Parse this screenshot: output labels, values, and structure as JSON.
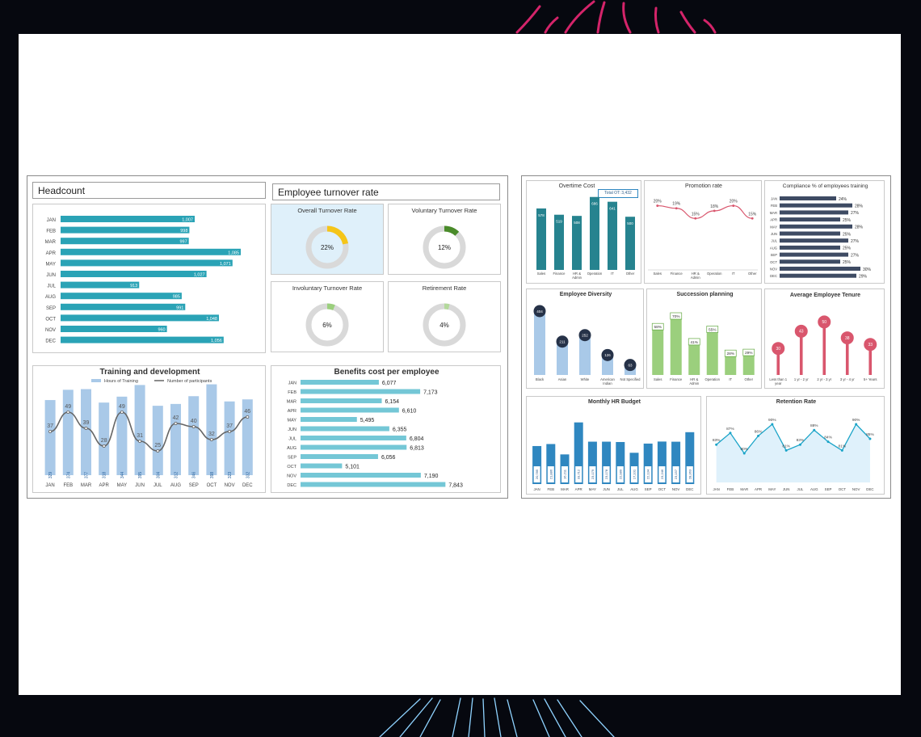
{
  "colors": {
    "teal": "#2aa3b6",
    "turq": "#74c7d6",
    "blue_light": "#a9c9e8",
    "dark_teal": "#26838f",
    "navy": "#3e4b63",
    "green": "#9bcf7d",
    "red": "#d9566d",
    "blue": "#2f87c0",
    "donut_gray": "#d9d9d9",
    "yellow": "#f5c518",
    "dkgreen": "#4a8b2a",
    "ltgreen": "#b4d99c"
  },
  "headcount": {
    "title": "Headcount",
    "chart_data": {
      "type": "bar",
      "orientation": "horizontal",
      "categories": [
        "JAN",
        "FEB",
        "MAR",
        "APR",
        "MAY",
        "JUN",
        "JUL",
        "AUG",
        "SEP",
        "OCT",
        "NOV",
        "DEC"
      ],
      "values": [
        1007,
        998,
        997,
        1085,
        1071,
        1027,
        913,
        985,
        991,
        1048,
        960,
        1056
      ],
      "labels": [
        "1,007",
        "998",
        "997",
        "1,085",
        "1,071",
        "1,027",
        "913",
        "985",
        "991",
        "1,048",
        "960",
        "1,056"
      ]
    }
  },
  "turnover": {
    "title": "Employee turnover rate",
    "tiles": [
      {
        "title": "Overall Turnover Rate",
        "value": 22,
        "label": "22%",
        "color": "yellow"
      },
      {
        "title": "Voluntary Turnover Rate",
        "value": 12,
        "label": "12%",
        "color": "dkgreen"
      },
      {
        "title": "Involuntary Turnover Rate",
        "value": 6,
        "label": "6%",
        "color": "green"
      },
      {
        "title": "Retirement Rate",
        "value": 4,
        "label": "4%",
        "color": "ltgreen"
      }
    ]
  },
  "training": {
    "title": "Training and development",
    "chart_data": {
      "type": "bar",
      "categories": [
        "JAN",
        "FEB",
        "MAR",
        "APR",
        "MAY",
        "JUN",
        "JUL",
        "AUG",
        "SEP",
        "OCT",
        "NOV",
        "DEC"
      ],
      "legend": [
        "Hours of Training",
        "Number of participants"
      ],
      "series": [
        {
          "name": "Hours of Training",
          "values": [
            329,
            374,
            377,
            318,
            344,
            395,
            304,
            312,
            346,
            398,
            323,
            332
          ]
        },
        {
          "name": "Number of participants",
          "values": [
            37,
            49,
            39,
            28,
            49,
            31,
            25,
            42,
            40,
            32,
            37,
            46
          ]
        }
      ],
      "ylim": [
        0,
        420
      ]
    }
  },
  "benefits": {
    "title": "Benefits cost per employee",
    "chart_data": {
      "type": "bar",
      "orientation": "horizontal",
      "categories": [
        "JAN",
        "FEB",
        "MAR",
        "APR",
        "MAY",
        "JUN",
        "JUL",
        "AUG",
        "SEP",
        "OCT",
        "NOV",
        "DEC"
      ],
      "values": [
        6077,
        7173,
        6154,
        6610,
        5495,
        6355,
        6804,
        6813,
        6056,
        5101,
        7190,
        7843
      ],
      "labels": [
        "6,077",
        "7,173",
        "6,154",
        "6,610",
        "5,495",
        "6,355",
        "6,804",
        "6,813",
        "6,056",
        "5,101",
        "7,190",
        "7,843"
      ]
    }
  },
  "overtime": {
    "title": "Overtime Cost",
    "total_label": "Total OT: 3,432",
    "chart_data": {
      "type": "bar",
      "categories": [
        "Sales",
        "Finance",
        "HR & Admin",
        "Operation",
        "IT",
        "Other"
      ],
      "values": [
        578,
        519,
        508,
        686,
        641,
        500
      ],
      "ylim": [
        0,
        760
      ]
    }
  },
  "promotion": {
    "title": "Promotion rate",
    "chart_data": {
      "type": "line",
      "categories": [
        "Sales",
        "Finance",
        "HR & Admin",
        "Operation",
        "IT",
        "Other"
      ],
      "values": [
        20,
        19,
        15,
        18,
        20,
        15
      ],
      "labels": [
        "20%",
        "19%",
        "15%",
        "18%",
        "20%",
        "15%"
      ],
      "ylim": [
        10,
        24
      ]
    }
  },
  "compliance": {
    "title": "Compliance % of employees training",
    "chart_data": {
      "type": "bar",
      "orientation": "horizontal",
      "categories": [
        "JAN",
        "FEB",
        "MAR",
        "APR",
        "MAY",
        "JUN",
        "JUL",
        "AUG",
        "SEP",
        "OCT",
        "NOV",
        "DEC"
      ],
      "values": [
        24,
        28,
        27,
        25,
        28,
        25,
        27,
        25,
        27,
        25,
        30,
        29
      ],
      "labels": [
        "24%",
        "28%",
        "27%",
        "25%",
        "28%",
        "25%",
        "27%",
        "25%",
        "27%",
        "25%",
        "30%",
        "29%"
      ]
    }
  },
  "diversity": {
    "title": "Employee Diversity",
    "chart_data": {
      "type": "bar",
      "categories": [
        "Black",
        "Asian",
        "White",
        "American Indian",
        "Not Specified"
      ],
      "values": [
        404,
        211,
        252,
        126,
        63
      ],
      "ylim": [
        0,
        460
      ]
    }
  },
  "succession": {
    "title": "Succession planning",
    "chart_data": {
      "type": "bar",
      "categories": [
        "Sales",
        "Finance",
        "HR & Admin",
        "Operation",
        "IT",
        "Other"
      ],
      "values": [
        58,
        70,
        41,
        55,
        28,
        29
      ],
      "labels": [
        "58%",
        "70%",
        "41%",
        "55%",
        "28%",
        "29%"
      ],
      "ylim": [
        0,
        80
      ]
    }
  },
  "tenure": {
    "title": "Average Employee Tenure",
    "chart_data": {
      "type": "bar",
      "categories": [
        "Less than 1 year",
        "1 yr - 2 yr",
        "2 yr - 3 yr",
        "3 yr - 4 yr",
        "5+ Years"
      ],
      "values": [
        30,
        43,
        50,
        38,
        33
      ],
      "ylim": [
        0,
        60
      ]
    }
  },
  "budget": {
    "title": "Monthly HR Budget",
    "chart_data": {
      "type": "bar",
      "categories": [
        "JAN",
        "FEB",
        "MAR",
        "APR",
        "MAY",
        "JUN",
        "JUL",
        "AUG",
        "SEP",
        "OCT",
        "NOV",
        "DEC"
      ],
      "values": [
        20785,
        21886,
        16211,
        33712,
        23179,
        23178,
        22989,
        17101,
        22134,
        23246,
        23157,
        28363
      ],
      "labels": [
        "20,785",
        "21,886",
        "16,211",
        "33,712",
        "23,179",
        "23,178",
        "22,989",
        "17,101",
        "22,134",
        "23,246",
        "23,157",
        "28,363"
      ],
      "ylim": [
        0,
        38000
      ]
    }
  },
  "retention": {
    "title": "Retention Rate",
    "chart_data": {
      "type": "area",
      "categories": [
        "JAN",
        "FEB",
        "MAR",
        "APR",
        "MAY",
        "JUN",
        "JUL",
        "AUG",
        "SEP",
        "OCT",
        "NOV",
        "DEC"
      ],
      "values": [
        83,
        87,
        80,
        86,
        90,
        81,
        83,
        88,
        84,
        81,
        90,
        85
      ],
      "labels": [
        "83%",
        "87%",
        "80%",
        "86%",
        "90%",
        "81%",
        "83%",
        "88%",
        "84%",
        "81%",
        "90%",
        "85%"
      ],
      "ylim": [
        70,
        95
      ]
    }
  }
}
